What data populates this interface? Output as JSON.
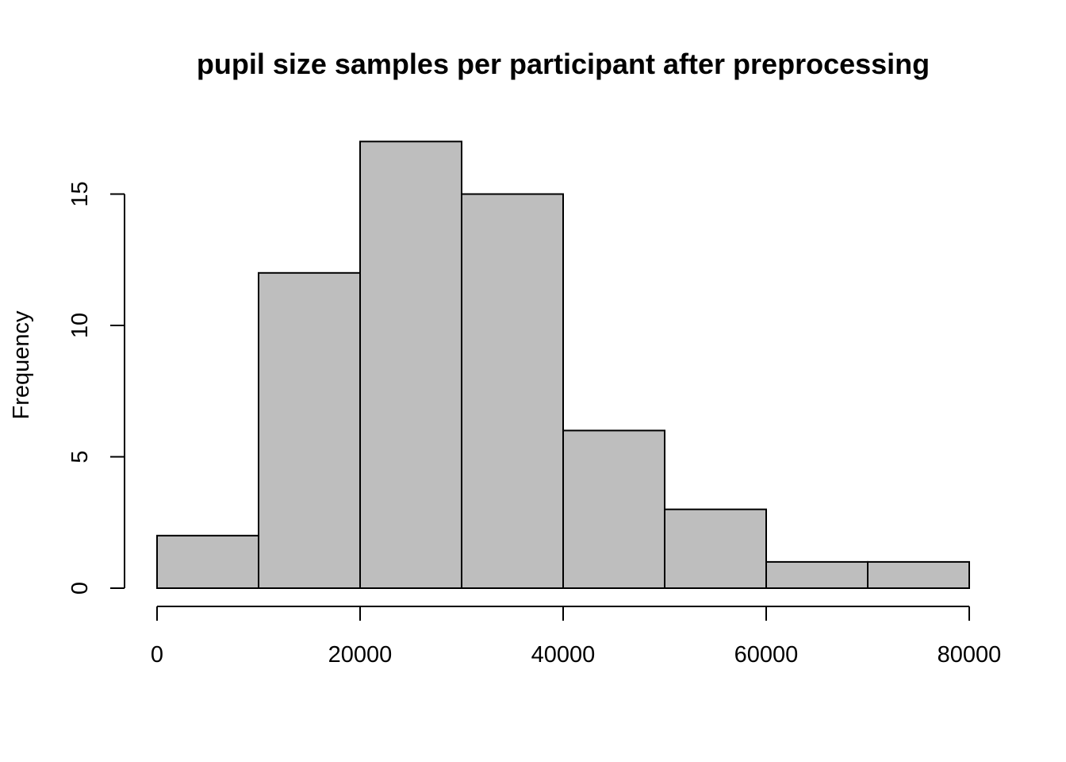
{
  "chart_data": {
    "type": "bar",
    "subtype": "histogram",
    "title": "pupil size samples per participant after preprocessing",
    "xlabel": "",
    "ylabel": "Frequency",
    "bins": [
      {
        "start": 0,
        "end": 10000,
        "count": 2
      },
      {
        "start": 10000,
        "end": 20000,
        "count": 12
      },
      {
        "start": 20000,
        "end": 30000,
        "count": 17
      },
      {
        "start": 30000,
        "end": 40000,
        "count": 15
      },
      {
        "start": 40000,
        "end": 50000,
        "count": 6
      },
      {
        "start": 50000,
        "end": 60000,
        "count": 3
      },
      {
        "start": 60000,
        "end": 70000,
        "count": 1
      },
      {
        "start": 70000,
        "end": 80000,
        "count": 1
      }
    ],
    "x_ticks": [
      "0",
      "20000",
      "40000",
      "60000",
      "80000"
    ],
    "y_ticks": [
      "0",
      "5",
      "10",
      "15"
    ],
    "xlim": [
      0,
      80000
    ],
    "ylim": [
      0,
      17
    ],
    "grid": false,
    "bar_color": "#bebebe",
    "edge_color": "#000000"
  }
}
